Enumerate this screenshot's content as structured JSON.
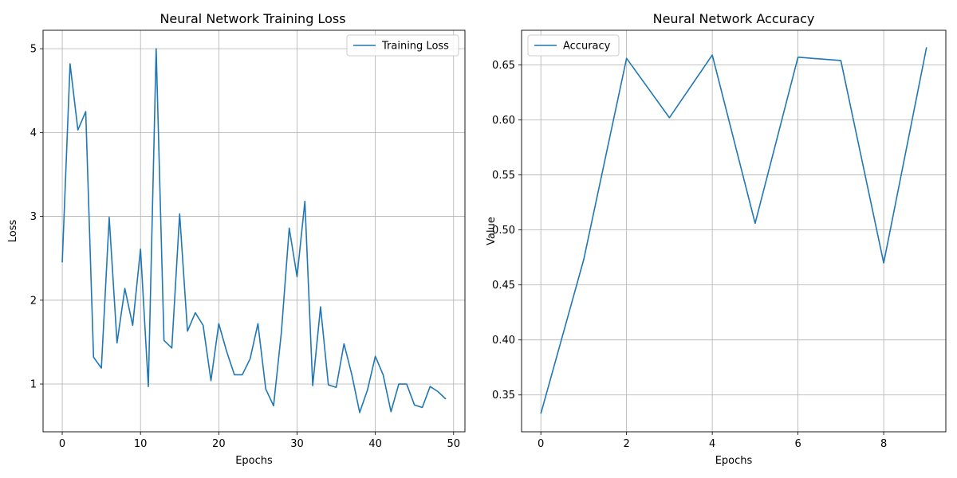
{
  "chart_data": [
    {
      "type": "line",
      "title": "Neural Network Training Loss",
      "xlabel": "Epochs",
      "ylabel": "Loss",
      "xlim": [
        -2.45,
        51.45
      ],
      "ylim": [
        0.43,
        5.22
      ],
      "xticks": [
        "0",
        "10",
        "20",
        "30",
        "40",
        "50"
      ],
      "yticks": [
        "1",
        "2",
        "3",
        "4",
        "5"
      ],
      "grid": true,
      "legend_position": "upper-right",
      "series": [
        {
          "name": "Training Loss",
          "color": "#1f77b4",
          "x": [
            0,
            1,
            2,
            3,
            4,
            5,
            6,
            7,
            8,
            9,
            10,
            11,
            12,
            13,
            14,
            15,
            16,
            17,
            18,
            19,
            20,
            21,
            22,
            23,
            24,
            25,
            26,
            27,
            28,
            29,
            30,
            31,
            32,
            33,
            34,
            35,
            36,
            37,
            38,
            39,
            40,
            41,
            42,
            43,
            44,
            45,
            46,
            47,
            48,
            49
          ],
          "y": [
            2.45,
            4.82,
            4.03,
            4.25,
            1.32,
            1.19,
            2.99,
            1.49,
            2.14,
            1.7,
            2.61,
            0.97,
            5.0,
            1.52,
            1.43,
            3.03,
            1.63,
            1.85,
            1.7,
            1.04,
            1.72,
            1.39,
            1.11,
            1.11,
            1.3,
            1.72,
            0.94,
            0.74,
            1.62,
            2.86,
            2.28,
            3.18,
            0.98,
            1.92,
            0.99,
            0.96,
            1.48,
            1.11,
            0.66,
            0.93,
            1.33,
            1.11,
            0.67,
            1.0,
            1.0,
            0.75,
            0.72,
            0.97,
            0.91,
            0.82
          ]
        }
      ]
    },
    {
      "type": "line",
      "title": "Neural Network Accuracy",
      "xlabel": "Epochs",
      "ylabel": "Value",
      "xlim": [
        -0.45,
        9.45
      ],
      "ylim": [
        0.3165,
        0.6815
      ],
      "xticks": [
        "0",
        "2",
        "4",
        "6",
        "8"
      ],
      "yticks": [
        "0.35",
        "0.40",
        "0.45",
        "0.50",
        "0.55",
        "0.60",
        "0.65"
      ],
      "grid": true,
      "legend_position": "upper-left",
      "series": [
        {
          "name": "Accuracy",
          "color": "#1f77b4",
          "x": [
            0,
            1,
            2,
            3,
            4,
            5,
            6,
            7,
            8,
            9
          ],
          "y": [
            0.333,
            0.473,
            0.656,
            0.602,
            0.659,
            0.506,
            0.657,
            0.654,
            0.47,
            0.666
          ]
        }
      ]
    }
  ]
}
